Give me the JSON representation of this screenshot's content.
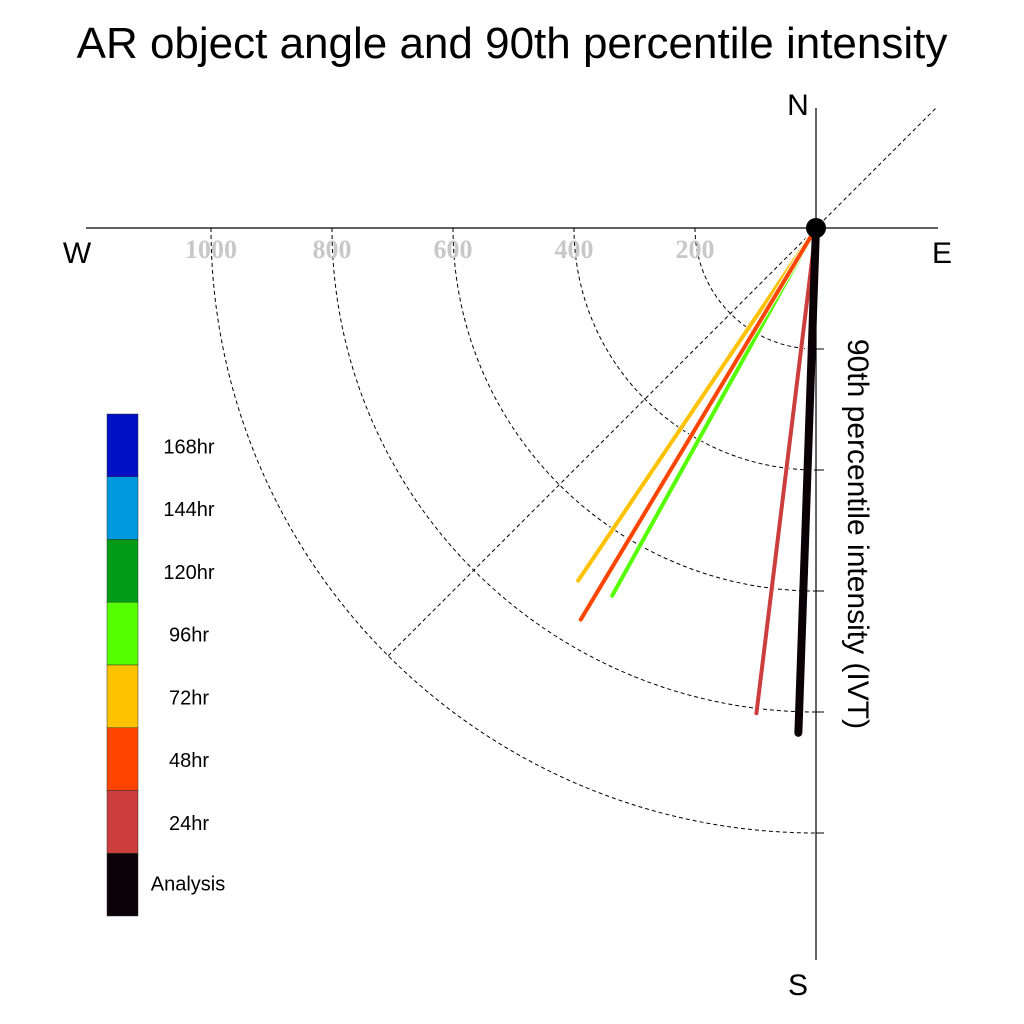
{
  "chart_data": {
    "type": "polar-vector",
    "title": "AR object angle and 90th percentile intensity",
    "radial_axis_label": "90th percentile intensity (IVT)",
    "compass": {
      "north": "N",
      "south": "S",
      "east": "E",
      "west": "W"
    },
    "radial_ticks": [
      {
        "value": 200,
        "label": "200"
      },
      {
        "value": 400,
        "label": "400"
      },
      {
        "value": 600,
        "label": "600"
      },
      {
        "value": 800,
        "label": "800"
      },
      {
        "value": 1000,
        "label": "1000"
      }
    ],
    "radial_max": 1200,
    "angle_convention": "degrees clockwise from north",
    "reference_direction_deg": 225,
    "series": [
      {
        "name": "Analysis",
        "color": "#0a0006",
        "angle_deg": 182,
        "value": 835
      },
      {
        "name": "24hr",
        "color": "#cc3d3d",
        "angle_deg": 187,
        "value": 808
      },
      {
        "name": "48hr",
        "color": "#ff4500",
        "angle_deg": 211,
        "value": 755
      },
      {
        "name": "72hr",
        "color": "#ffc200",
        "angle_deg": 214,
        "value": 703
      },
      {
        "name": "96hr",
        "color": "#55ff00",
        "angle_deg": 209,
        "value": 695
      }
    ],
    "legend": {
      "placement": "left",
      "entries": [
        {
          "label": "168hr",
          "color": "#0010c4"
        },
        {
          "label": "144hr",
          "color": "#0098de"
        },
        {
          "label": "120hr",
          "color": "#009c16"
        },
        {
          "label": "96hr",
          "color": "#55ff00"
        },
        {
          "label": "72hr",
          "color": "#ffc200"
        },
        {
          "label": "48hr",
          "color": "#ff4500"
        },
        {
          "label": "24hr",
          "color": "#cc3d3d"
        },
        {
          "label": "Analysis",
          "color": "#0a0006"
        }
      ]
    },
    "grid": true
  }
}
